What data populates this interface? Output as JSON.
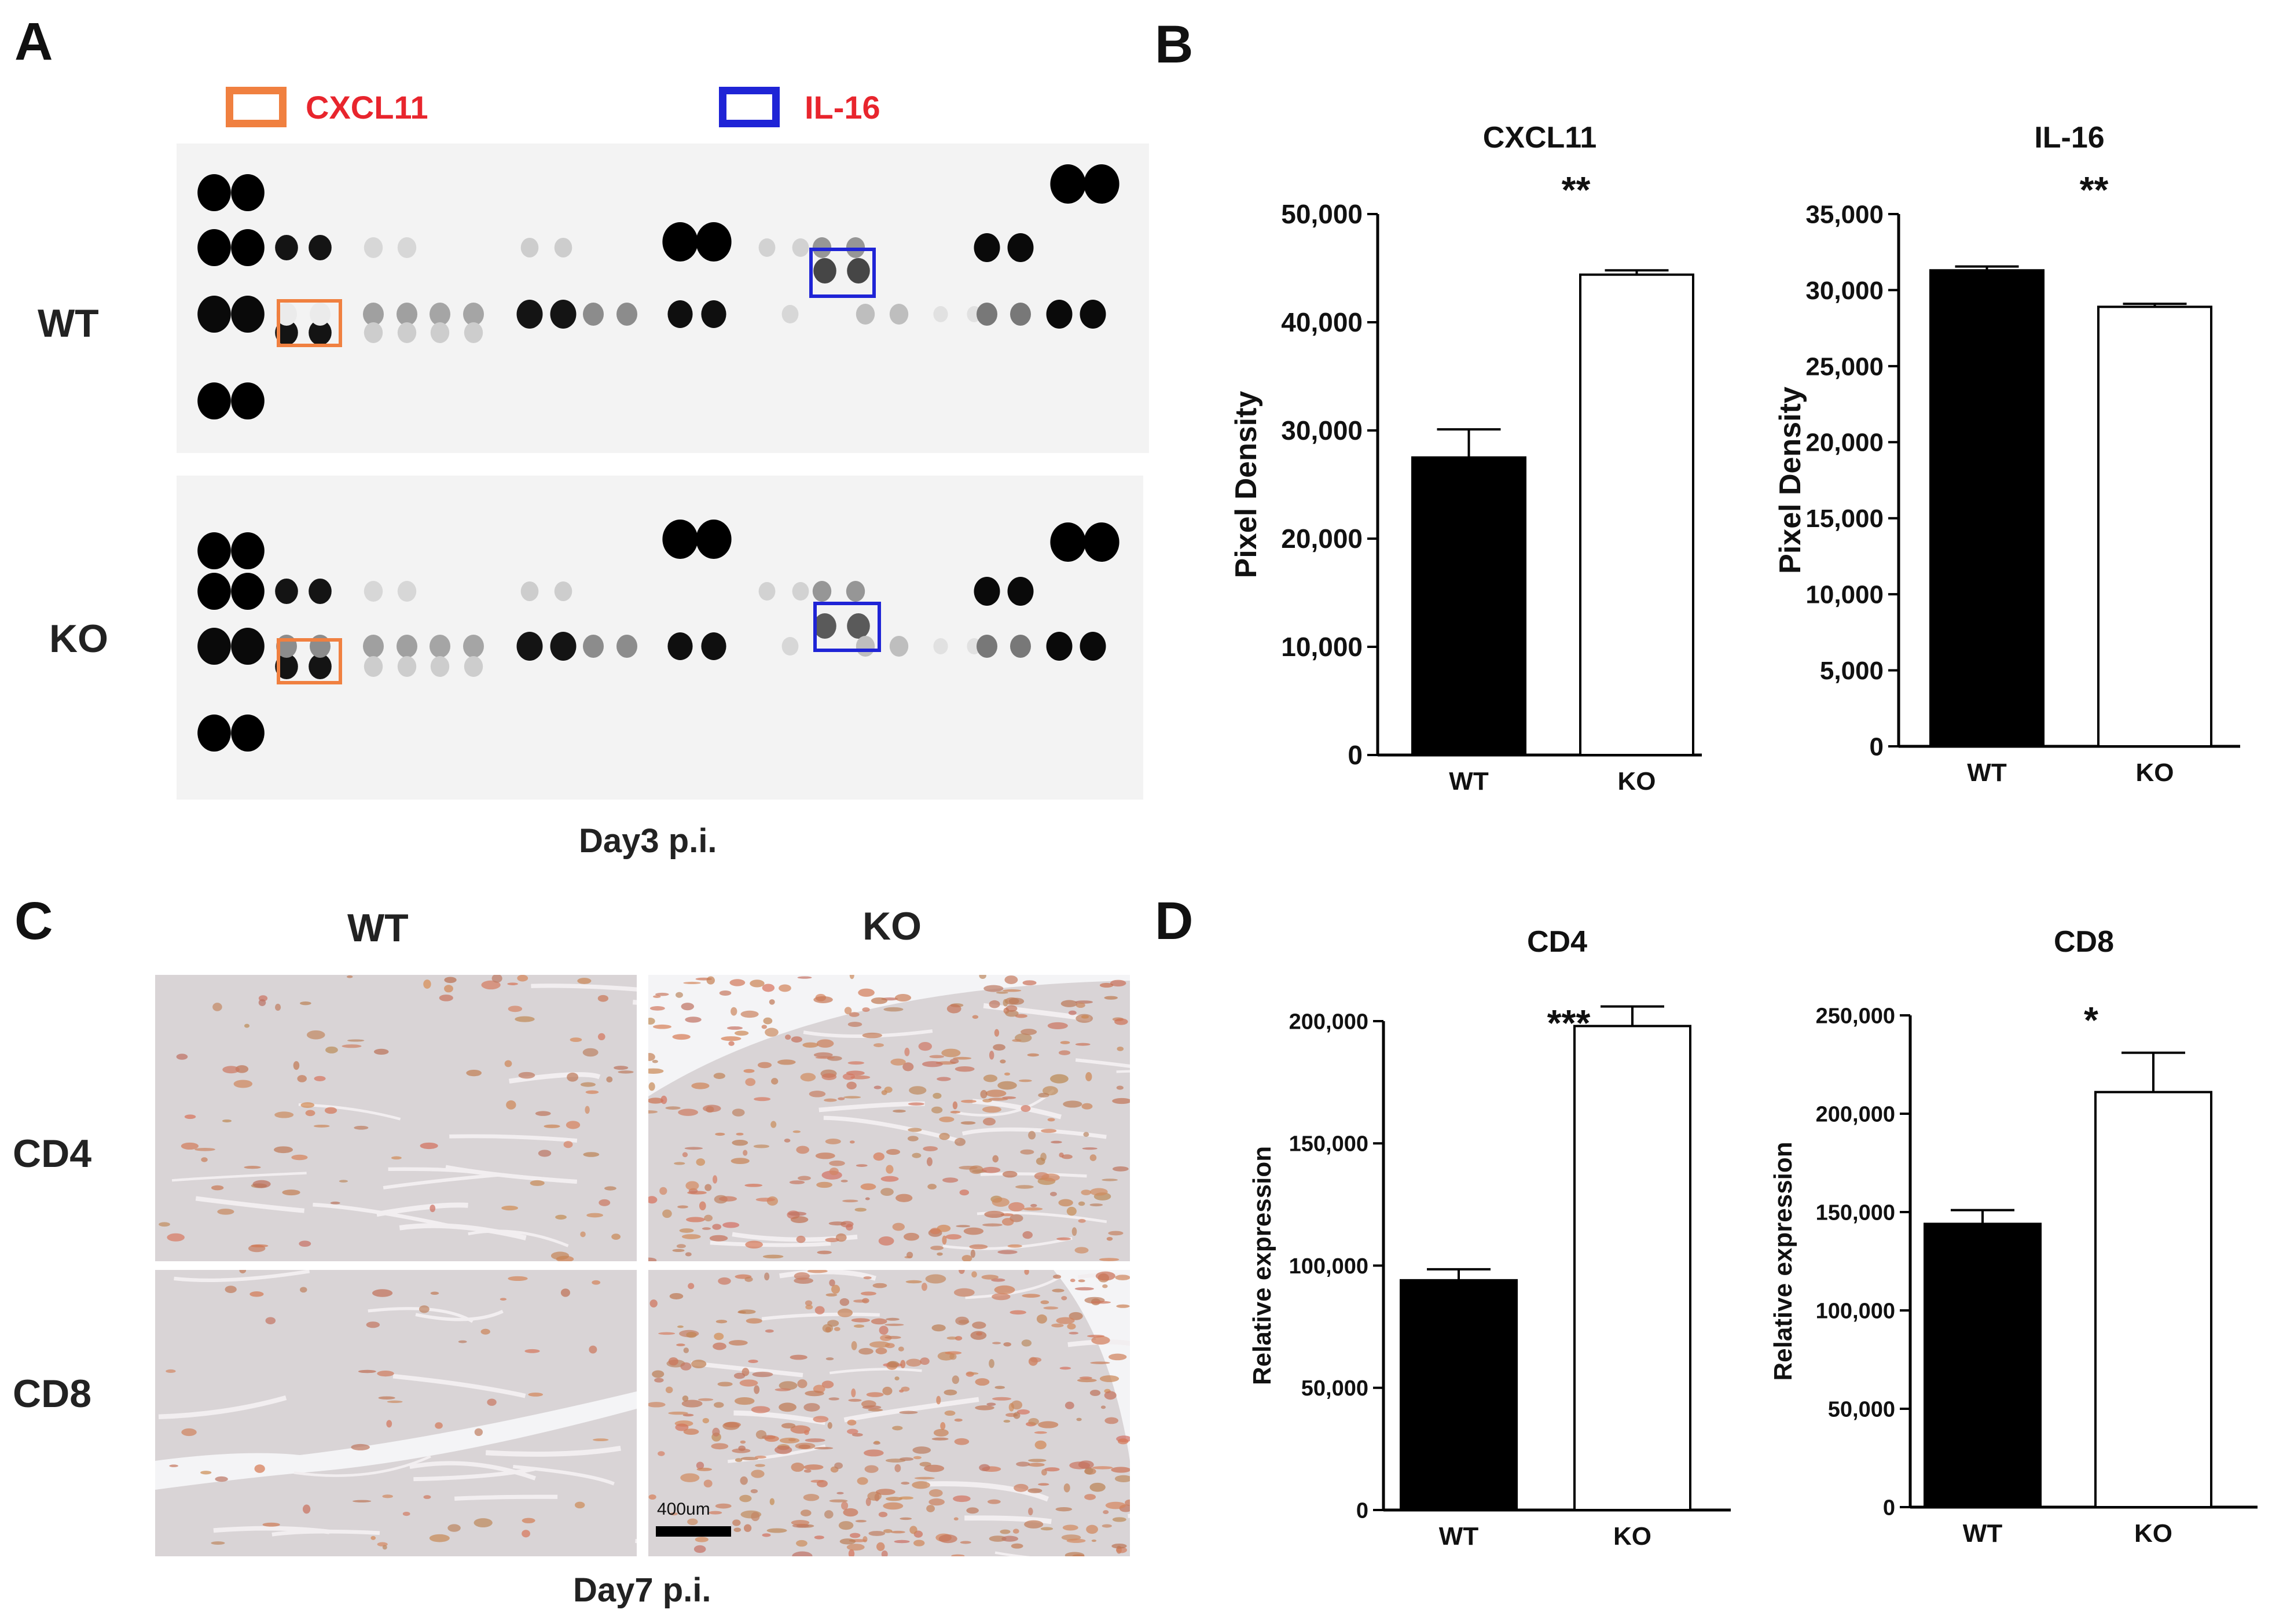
{
  "panels": {
    "a": "A",
    "b": "B",
    "c": "C",
    "d": "D"
  },
  "panel_a": {
    "legend": [
      {
        "label": "CXCL11",
        "box_color": "#f08040",
        "text_color": "#e8252d"
      },
      {
        "label": "IL-16",
        "box_color": "#1f24d6",
        "text_color": "#e8252d"
      }
    ],
    "rows": [
      "WT",
      "KO"
    ],
    "caption": "Day3 p.i."
  },
  "panel_c": {
    "columns": [
      "WT",
      "KO"
    ],
    "rows": [
      "CD4",
      "CD8"
    ],
    "scale_bar_label": "400um",
    "caption": "Day7 p.i."
  },
  "chart_data": [
    {
      "type": "bar",
      "title": "CXCL11",
      "ylabel": "Pixel Density",
      "categories": [
        "WT",
        "KO"
      ],
      "values": [
        27500,
        44400
      ],
      "errors": [
        2600,
        400
      ],
      "ylim": [
        0,
        50000
      ],
      "yticks": [
        0,
        10000,
        20000,
        30000,
        40000,
        50000
      ],
      "ytick_labels": [
        "0",
        "10,000",
        "20,000",
        "30,000",
        "40,000",
        "50,000"
      ],
      "significance": "**",
      "bar_fill": [
        "#000000",
        "#ffffff"
      ]
    },
    {
      "type": "bar",
      "title": "IL-16",
      "ylabel": "Pixel Density",
      "categories": [
        "WT",
        "KO"
      ],
      "values": [
        31300,
        28900
      ],
      "errors": [
        250,
        200
      ],
      "ylim": [
        0,
        35000
      ],
      "yticks": [
        0,
        5000,
        10000,
        15000,
        20000,
        25000,
        30000,
        35000
      ],
      "ytick_labels": [
        "0",
        "5,000",
        "10,000",
        "15,000",
        "20,000",
        "25,000",
        "30,000",
        "35,000"
      ],
      "significance": "**",
      "bar_fill": [
        "#000000",
        "#ffffff"
      ]
    },
    {
      "type": "bar",
      "title": "CD4",
      "ylabel": "Relative expression",
      "categories": [
        "WT",
        "KO"
      ],
      "values": [
        94000,
        198000
      ],
      "errors": [
        4500,
        8000
      ],
      "ylim": [
        0,
        200000
      ],
      "yticks": [
        0,
        50000,
        100000,
        150000,
        200000
      ],
      "ytick_labels": [
        "0",
        "50,000",
        "100,000",
        "150,000",
        "200,000"
      ],
      "significance": "***",
      "bar_fill": [
        "#000000",
        "#ffffff"
      ]
    },
    {
      "type": "bar",
      "title": "CD8",
      "ylabel": "Relative expression",
      "categories": [
        "WT",
        "KO"
      ],
      "values": [
        144000,
        211000
      ],
      "errors": [
        7000,
        20000
      ],
      "ylim": [
        0,
        250000
      ],
      "yticks": [
        0,
        50000,
        100000,
        150000,
        200000,
        250000
      ],
      "ytick_labels": [
        "0",
        "50,000",
        "100,000",
        "150,000",
        "200,000",
        "250,000"
      ],
      "significance": "*",
      "bar_fill": [
        "#000000",
        "#ffffff"
      ]
    }
  ]
}
